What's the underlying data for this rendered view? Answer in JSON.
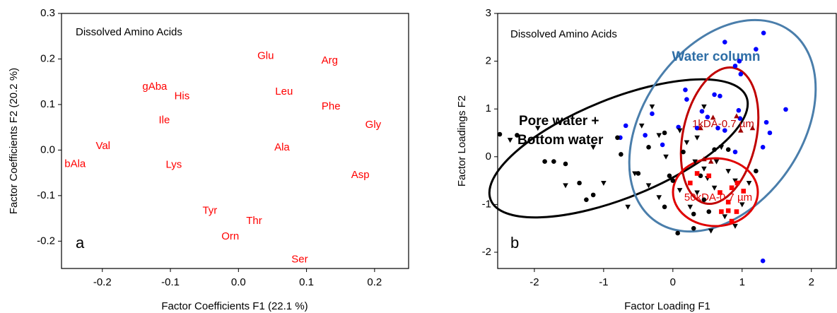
{
  "chart_data": [
    {
      "type": "text-scatter",
      "xlabel": "Factor Coefficients F1 (22.1 %)",
      "ylabel": "Factor Coefficients F2 (20.2 %)",
      "annotations": [
        "Dissolved Amino Acids",
        "a"
      ],
      "color": "#ff0000",
      "labels": [
        "Glu",
        "Arg",
        "gAba",
        "His",
        "Leu",
        "Phe",
        "Ile",
        "Gly",
        "Val",
        "Ala",
        "bAla",
        "Lys",
        "Asp",
        "Tyr",
        "Thr",
        "Orn",
        "Ser"
      ],
      "x": [
        0.04,
        0.134,
        -0.123,
        -0.083,
        0.067,
        0.136,
        -0.109,
        0.198,
        -0.199,
        0.064,
        -0.24,
        -0.095,
        0.179,
        -0.042,
        0.023,
        -0.012,
        0.09
      ],
      "y": [
        0.206,
        0.196,
        0.139,
        0.118,
        0.128,
        0.095,
        0.065,
        0.055,
        0.008,
        0.005,
        -0.031,
        -0.033,
        -0.055,
        -0.134,
        -0.156,
        -0.19,
        -0.241
      ],
      "xlim": [
        -0.26,
        0.25
      ],
      "ylim": [
        -0.26,
        0.3
      ],
      "xticks": [
        -0.2,
        -0.1,
        {
          "value": 0,
          "label": "0.0"
        },
        0.1,
        0.2
      ],
      "yticks": [
        -0.2,
        -0.1,
        {
          "value": 0,
          "label": "0.0"
        },
        0.1,
        0.2,
        0.3
      ]
    },
    {
      "type": "scatter",
      "xlabel": "Factor Loading F1",
      "ylabel": "Factor Loadings F2",
      "annotations": [
        "Dissolved Amino Acids",
        "b",
        "Water column",
        "Pore water +",
        "Bottom water",
        "1kDA-0.7 µm",
        "50kDA-0.7 µm"
      ],
      "xlim": [
        -2.53,
        2.36
      ],
      "ylim": [
        -2.34,
        3
      ],
      "xticks": [
        -2,
        -1,
        0,
        1,
        2
      ],
      "yticks": [
        -2,
        -1,
        0,
        1,
        2,
        3
      ],
      "series": [
        {
          "marker": "circle",
          "color": "#0000ff",
          "x": [
            1.31,
            0.96,
            0.9,
            1.2,
            0.75,
            0.98,
            1.63,
            0.97,
            1.4,
            0.42,
            0.18,
            -0.3,
            -0.68,
            -0.15,
            0.2,
            0.6,
            0.68,
            0.95,
            1.35,
            1.3,
            0.75,
            -0.4,
            -0.76,
            0.08,
            0.65,
            1.3,
            0.35,
            0.5,
            0.9
          ],
          "y": [
            2.59,
            2.0,
            1.9,
            2.25,
            2.4,
            1.73,
            0.99,
            0.8,
            0.5,
            0.95,
            1.4,
            0.9,
            0.65,
            0.25,
            1.2,
            1.3,
            1.27,
            0.97,
            0.72,
            0.2,
            0.55,
            0.45,
            0.4,
            0.62,
            0.6,
            -2.18,
            0.6,
            0.83,
            0.1
          ]
        },
        {
          "marker": "circle",
          "color": "#000000",
          "x": [
            -2.5,
            -2.25,
            -1.85,
            -1.72,
            -1.55,
            -1.35,
            -1.25,
            -1.15,
            -0.5,
            -0.8,
            -0.05,
            0.0,
            -0.12,
            0.07,
            0.3,
            0.15,
            0.4,
            0.6,
            -0.35,
            -0.75,
            0.45,
            0.3,
            0.52,
            0.8,
            -0.12,
            1.2
          ],
          "y": [
            0.47,
            0.45,
            -0.1,
            -0.1,
            -0.15,
            -0.55,
            -0.9,
            -0.8,
            -0.35,
            0.4,
            -0.4,
            -0.5,
            -1.05,
            -1.6,
            -1.5,
            0.1,
            -0.4,
            0.15,
            0.2,
            0.05,
            -0.9,
            -1.2,
            -1.15,
            0.15,
            0.5,
            -0.3
          ]
        },
        {
          "marker": "triangle-down",
          "color": "#000000",
          "x": [
            -2.35,
            -1.95,
            -1.55,
            -1.15,
            -1.0,
            -0.55,
            -0.65,
            -0.35,
            -0.45,
            -0.3,
            -0.2,
            0.1,
            0.2,
            0.32,
            0.45,
            0.1,
            0.35,
            0.25,
            0.5,
            0.63,
            0.8,
            0.45,
            0.7,
            0.9,
            1.1,
            0.9,
            0.55,
            0.75,
            1.0,
            0.35,
            -0.1,
            -0.2,
            0.6
          ],
          "y": [
            0.35,
            0.6,
            -0.6,
            0.2,
            -0.55,
            -0.35,
            -1.05,
            -0.6,
            0.65,
            1.05,
            0.45,
            0.55,
            0.3,
            -0.1,
            -0.25,
            -0.7,
            -0.75,
            -1.05,
            -0.45,
            -0.1,
            -0.3,
            1.05,
            0.2,
            -0.5,
            -0.55,
            -1.45,
            -1.55,
            -1.25,
            -1.0,
            0.4,
            0.0,
            -0.85,
            -0.65
          ]
        },
        {
          "marker": "square",
          "color": "#ff0000",
          "x": [
            0.25,
            0.35,
            0.52,
            0.68,
            0.85,
            0.93,
            1.02,
            0.8,
            0.7,
            0.8,
            0.92,
            0.85
          ],
          "y": [
            -0.55,
            -0.35,
            -0.4,
            -0.75,
            -0.65,
            -0.55,
            -0.72,
            -0.95,
            -1.15,
            -1.13,
            -1.15,
            -1.35
          ]
        },
        {
          "marker": "triangle-up",
          "color": "#a00000",
          "x": [
            0.4,
            0.58,
            0.92,
            1.15,
            0.98,
            0.45,
            0.55
          ],
          "y": [
            0.6,
            0.82,
            0.85,
            0.6,
            0.55,
            -0.05,
            -0.1
          ]
        }
      ]
    }
  ]
}
